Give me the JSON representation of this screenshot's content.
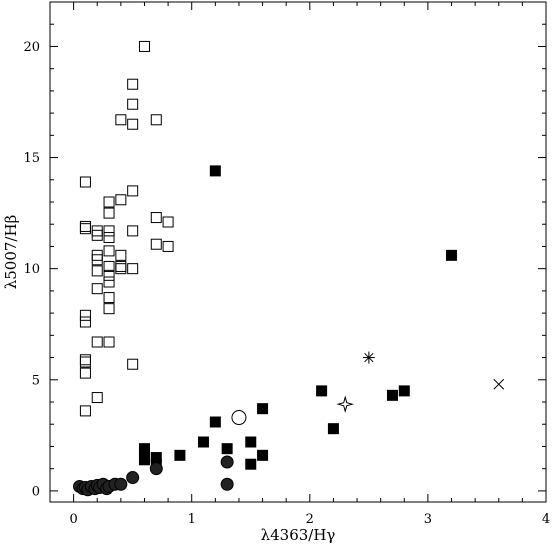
{
  "chart_data": {
    "type": "scatter",
    "xlabel": "λ4363/Hγ",
    "ylabel": "λ5007/Hβ",
    "xlim": [
      -0.2,
      4.0
    ],
    "ylim": [
      -0.5,
      22.0
    ],
    "x_ticks": [
      0,
      1,
      2,
      3,
      4
    ],
    "y_ticks": [
      0,
      5,
      10,
      15,
      20
    ],
    "grid": false,
    "series": [
      {
        "marker": "open-square",
        "points": [
          [
            0.6,
            20.0
          ],
          [
            0.5,
            18.3
          ],
          [
            0.5,
            17.4
          ],
          [
            0.4,
            16.7
          ],
          [
            0.7,
            16.7
          ],
          [
            0.5,
            16.5
          ],
          [
            0.1,
            13.9
          ],
          [
            0.5,
            13.5
          ],
          [
            0.4,
            13.1
          ],
          [
            0.3,
            13.0
          ],
          [
            0.3,
            12.5
          ],
          [
            0.7,
            12.3
          ],
          [
            0.8,
            12.1
          ],
          [
            0.1,
            11.9
          ],
          [
            0.1,
            11.8
          ],
          [
            0.2,
            11.7
          ],
          [
            0.2,
            11.5
          ],
          [
            0.3,
            11.7
          ],
          [
            0.5,
            11.7
          ],
          [
            0.3,
            11.4
          ],
          [
            0.7,
            11.1
          ],
          [
            0.8,
            11.0
          ],
          [
            0.3,
            10.8
          ],
          [
            0.2,
            10.6
          ],
          [
            0.4,
            10.6
          ],
          [
            0.2,
            10.4
          ],
          [
            0.3,
            10.1
          ],
          [
            0.4,
            10.0
          ],
          [
            0.4,
            10.1
          ],
          [
            0.5,
            10.0
          ],
          [
            0.2,
            9.9
          ],
          [
            0.3,
            9.7
          ],
          [
            0.3,
            9.4
          ],
          [
            0.2,
            9.1
          ],
          [
            0.3,
            8.7
          ],
          [
            0.3,
            8.2
          ],
          [
            0.1,
            7.9
          ],
          [
            0.1,
            7.6
          ],
          [
            0.2,
            6.7
          ],
          [
            0.3,
            6.7
          ],
          [
            0.1,
            5.9
          ],
          [
            0.1,
            5.8
          ],
          [
            0.5,
            5.7
          ],
          [
            0.1,
            5.3
          ],
          [
            0.2,
            4.2
          ],
          [
            0.1,
            3.6
          ]
        ]
      },
      {
        "marker": "filled-square",
        "points": [
          [
            1.2,
            14.4
          ],
          [
            3.2,
            10.6
          ],
          [
            2.1,
            4.5
          ],
          [
            2.8,
            4.5
          ],
          [
            2.7,
            4.3
          ],
          [
            1.6,
            3.7
          ],
          [
            1.2,
            3.1
          ],
          [
            2.2,
            2.8
          ],
          [
            1.1,
            2.2
          ],
          [
            1.5,
            2.2
          ],
          [
            0.6,
            1.9
          ],
          [
            1.3,
            1.9
          ],
          [
            0.6,
            1.7
          ],
          [
            1.6,
            1.6
          ],
          [
            0.9,
            1.6
          ],
          [
            0.7,
            1.5
          ],
          [
            0.6,
            1.4
          ],
          [
            0.7,
            1.2
          ],
          [
            1.5,
            1.2
          ]
        ]
      },
      {
        "marker": "filled-circle",
        "points": [
          [
            0.05,
            0.2
          ],
          [
            0.08,
            0.1
          ],
          [
            0.1,
            0.15
          ],
          [
            0.12,
            0.05
          ],
          [
            0.15,
            0.2
          ],
          [
            0.18,
            0.1
          ],
          [
            0.2,
            0.25
          ],
          [
            0.22,
            0.15
          ],
          [
            0.25,
            0.3
          ],
          [
            0.28,
            0.1
          ],
          [
            0.3,
            0.2
          ],
          [
            0.35,
            0.3
          ],
          [
            0.4,
            0.3
          ],
          [
            0.5,
            0.6
          ],
          [
            0.7,
            1.0
          ],
          [
            1.3,
            1.3
          ],
          [
            1.3,
            0.3
          ]
        ]
      },
      {
        "marker": "open-circle",
        "points": [
          [
            1.4,
            3.3
          ]
        ]
      },
      {
        "marker": "asterisk",
        "points": [
          [
            2.5,
            6.0
          ]
        ]
      },
      {
        "marker": "open-star",
        "points": [
          [
            2.3,
            3.9
          ]
        ]
      },
      {
        "marker": "cross",
        "points": [
          [
            3.6,
            4.8
          ]
        ]
      }
    ]
  }
}
